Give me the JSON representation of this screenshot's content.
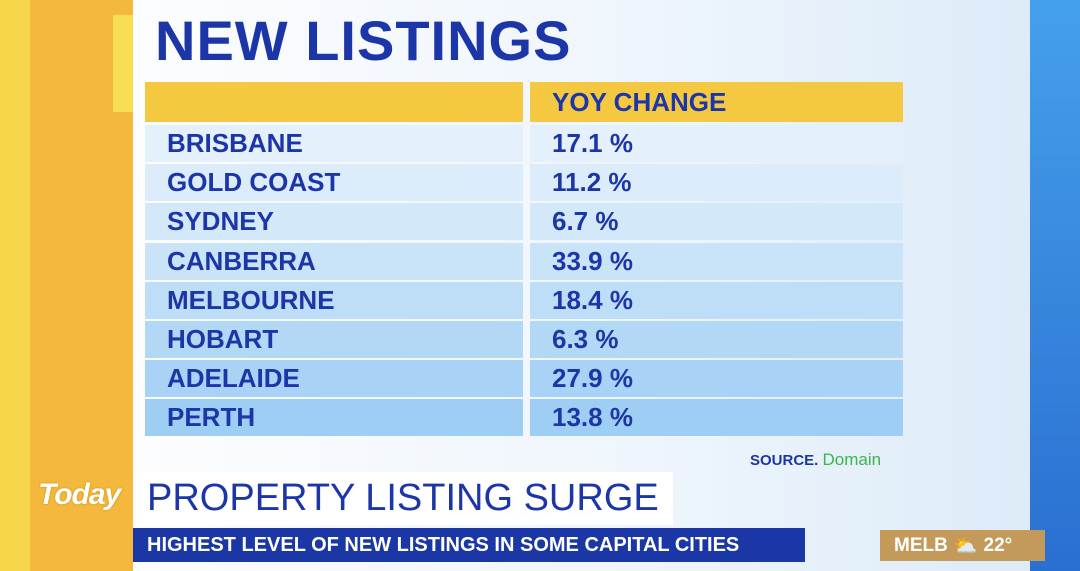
{
  "title": "NEW LISTINGS",
  "chart_data": {
    "type": "table",
    "title": "NEW LISTINGS",
    "columns": [
      "",
      "YOY CHANGE"
    ],
    "rows": [
      {
        "city": "BRISBANE",
        "change": "17.1 %"
      },
      {
        "city": "GOLD COAST",
        "change": "11.2 %"
      },
      {
        "city": "SYDNEY",
        "change": "6.7 %"
      },
      {
        "city": "CANBERRA",
        "change": "33.9 %"
      },
      {
        "city": "MELBOURNE",
        "change": "18.4 %"
      },
      {
        "city": "HOBART",
        "change": "6.3 %"
      },
      {
        "city": "ADELAIDE",
        "change": "27.9 %"
      },
      {
        "city": "PERTH",
        "change": "13.8 %"
      }
    ]
  },
  "source": {
    "label": "SOURCE.",
    "name": "Domain"
  },
  "logo": "Today",
  "headline": "PROPERTY LISTING SURGE",
  "subheadline": "HIGHEST LEVEL OF NEW LISTINGS IN SOME CAPITAL CITIES",
  "weather": {
    "city": "MELB",
    "icon": "partly-cloudy-icon",
    "temp": "22°"
  }
}
